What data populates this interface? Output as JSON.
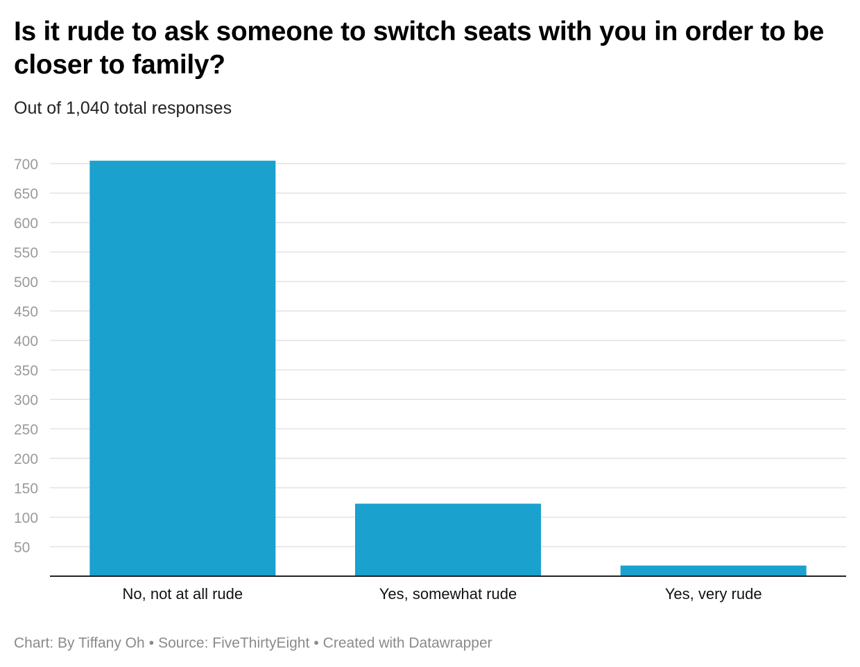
{
  "chart_data": {
    "type": "bar",
    "title": "Is it rude to ask someone to switch seats with you in order to be closer to family?",
    "subtitle": "Out of 1,040 total responses",
    "categories": [
      "No, not at all rude",
      "Yes, somewhat rude",
      "Yes, very rude"
    ],
    "values": [
      705,
      123,
      18
    ],
    "ylim": [
      0,
      700
    ],
    "yticks": [
      50,
      100,
      150,
      200,
      250,
      300,
      350,
      400,
      450,
      500,
      550,
      600,
      650,
      700
    ],
    "xlabel": "",
    "ylabel": "",
    "grid": true,
    "bar_color": "#1aa1ce"
  },
  "footer": {
    "credit": "Chart: By Tiffany Oh",
    "separator": "•",
    "source": "Source: FiveThirtyEight",
    "tool": "Created with Datawrapper"
  }
}
